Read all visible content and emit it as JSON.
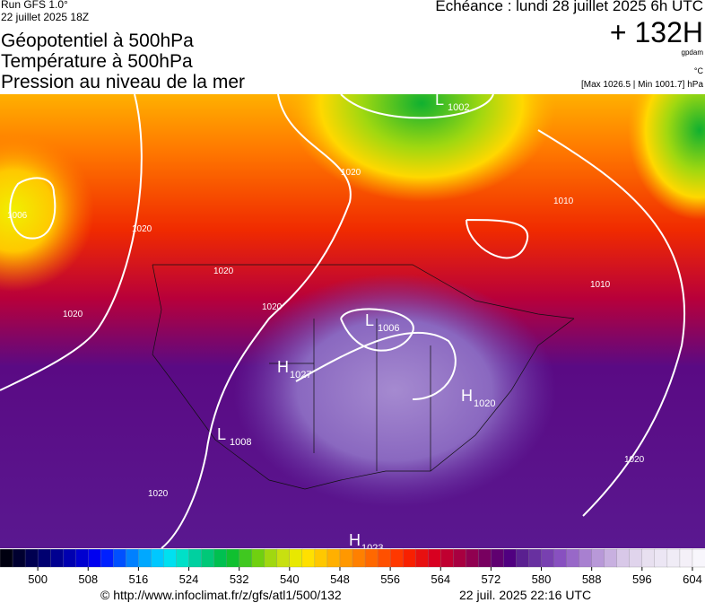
{
  "header": {
    "run": "Run GFS 1.0°",
    "run_date": "22 juillet 2025 18Z",
    "titles": [
      "Géopotentiel à 500hPa",
      "Température à 500hPa",
      "Pression au niveau de la mer"
    ],
    "echeance": "Echéance : lundi 28 juillet 2025 6h UTC",
    "lead": "+ 132H",
    "unit_geo": "gpdam",
    "unit_temp": "°C",
    "pressure_range": "[Max 1026.5 | Min 1001.7] hPa"
  },
  "map": {
    "pressure_centers": [
      {
        "letter": "L",
        "value": 1002
      },
      {
        "letter": "L",
        "value": 1006
      },
      {
        "letter": "H",
        "value": 1027
      },
      {
        "letter": "H",
        "value": 1020
      },
      {
        "letter": "L",
        "value": 1008
      },
      {
        "letter": "H",
        "value": 1023
      }
    ],
    "isobar_labels": [
      1006,
      1020,
      1020,
      1020,
      1020,
      1020,
      1010,
      1010,
      1020,
      1020
    ]
  },
  "colorbar": {
    "min": 494,
    "max": 606,
    "ticks": [
      500,
      508,
      516,
      524,
      532,
      540,
      548,
      556,
      564,
      572,
      580,
      588,
      596,
      604
    ],
    "colors": [
      "#000010",
      "#000030",
      "#000050",
      "#000070",
      "#000090",
      "#0000b0",
      "#0000d0",
      "#0000f0",
      "#0020ff",
      "#0050ff",
      "#0080ff",
      "#00a8ff",
      "#00c8ff",
      "#00e0f0",
      "#00e0c8",
      "#00d0a0",
      "#00c878",
      "#00c050",
      "#10c030",
      "#40c820",
      "#70d010",
      "#a0d810",
      "#c8e010",
      "#e8e800",
      "#ffe000",
      "#ffc800",
      "#ffb000",
      "#ff9800",
      "#ff8000",
      "#ff6800",
      "#ff5000",
      "#ff3800",
      "#f82000",
      "#e81010",
      "#d80020",
      "#c00030",
      "#a80040",
      "#900050",
      "#780060",
      "#600070",
      "#500080",
      "#5a2090",
      "#6830a0",
      "#7840b0",
      "#8850c0",
      "#9868c8",
      "#a880d0",
      "#b898d8",
      "#c8b0e0",
      "#d8c8e8",
      "#e0d4ec",
      "#e8e0f0",
      "#ece6f4",
      "#f0ecf6",
      "#f4f0f8",
      "#f8f6fc"
    ]
  },
  "footer": {
    "url": "© http://www.infoclimat.fr/z/gfs/atl1/500/132",
    "timestamp": "22 juil. 2025 22:16 UTC"
  }
}
